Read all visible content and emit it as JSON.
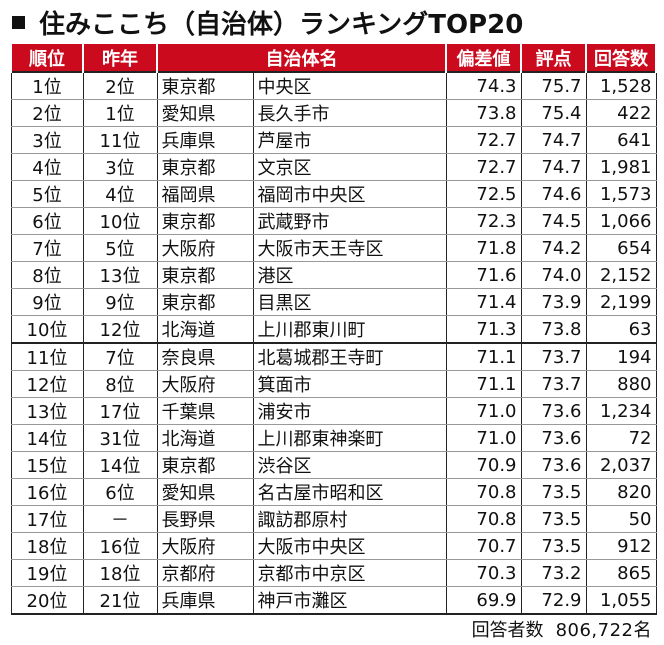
{
  "title": "住みここち（自治体）ランキングTOP20",
  "columns": [
    "順位",
    "昨年",
    "自治体名",
    "偏差値",
    "評点",
    "回答数"
  ],
  "rows": [
    {
      "rank": "1位",
      "prev": "2位",
      "pref": "東京都",
      "city": "中央区",
      "dev": "74.3",
      "score": "75.7",
      "resp": "1,528"
    },
    {
      "rank": "2位",
      "prev": "1位",
      "pref": "愛知県",
      "city": "長久手市",
      "dev": "73.8",
      "score": "75.4",
      "resp": "422"
    },
    {
      "rank": "3位",
      "prev": "11位",
      "pref": "兵庫県",
      "city": "芦屋市",
      "dev": "72.7",
      "score": "74.7",
      "resp": "641"
    },
    {
      "rank": "4位",
      "prev": "3位",
      "pref": "東京都",
      "city": "文京区",
      "dev": "72.7",
      "score": "74.7",
      "resp": "1,981"
    },
    {
      "rank": "5位",
      "prev": "4位",
      "pref": "福岡県",
      "city": "福岡市中央区",
      "dev": "72.5",
      "score": "74.6",
      "resp": "1,573"
    },
    {
      "rank": "6位",
      "prev": "10位",
      "pref": "東京都",
      "city": "武蔵野市",
      "dev": "72.3",
      "score": "74.5",
      "resp": "1,066"
    },
    {
      "rank": "7位",
      "prev": "5位",
      "pref": "大阪府",
      "city": "大阪市天王寺区",
      "dev": "71.8",
      "score": "74.2",
      "resp": "654"
    },
    {
      "rank": "8位",
      "prev": "13位",
      "pref": "東京都",
      "city": "港区",
      "dev": "71.6",
      "score": "74.0",
      "resp": "2,152"
    },
    {
      "rank": "9位",
      "prev": "9位",
      "pref": "東京都",
      "city": "目黒区",
      "dev": "71.4",
      "score": "73.9",
      "resp": "2,199"
    },
    {
      "rank": "10位",
      "prev": "12位",
      "pref": "北海道",
      "city": "上川郡東川町",
      "dev": "71.3",
      "score": "73.8",
      "resp": "63"
    },
    {
      "rank": "11位",
      "prev": "7位",
      "pref": "奈良県",
      "city": "北葛城郡王寺町",
      "dev": "71.1",
      "score": "73.7",
      "resp": "194"
    },
    {
      "rank": "12位",
      "prev": "8位",
      "pref": "大阪府",
      "city": "箕面市",
      "dev": "71.1",
      "score": "73.7",
      "resp": "880"
    },
    {
      "rank": "13位",
      "prev": "17位",
      "pref": "千葉県",
      "city": "浦安市",
      "dev": "71.0",
      "score": "73.6",
      "resp": "1,234"
    },
    {
      "rank": "14位",
      "prev": "31位",
      "pref": "北海道",
      "city": "上川郡東神楽町",
      "dev": "71.0",
      "score": "73.6",
      "resp": "72"
    },
    {
      "rank": "15位",
      "prev": "14位",
      "pref": "東京都",
      "city": "渋谷区",
      "dev": "70.9",
      "score": "73.6",
      "resp": "2,037"
    },
    {
      "rank": "16位",
      "prev": "6位",
      "pref": "愛知県",
      "city": "名古屋市昭和区",
      "dev": "70.8",
      "score": "73.5",
      "resp": "820"
    },
    {
      "rank": "17位",
      "prev": "－",
      "pref": "長野県",
      "city": "諏訪郡原村",
      "dev": "70.8",
      "score": "73.5",
      "resp": "50"
    },
    {
      "rank": "18位",
      "prev": "16位",
      "pref": "大阪府",
      "city": "大阪市中央区",
      "dev": "70.7",
      "score": "73.5",
      "resp": "912"
    },
    {
      "rank": "19位",
      "prev": "18位",
      "pref": "京都府",
      "city": "京都市中京区",
      "dev": "70.3",
      "score": "73.2",
      "resp": "865"
    },
    {
      "rank": "20位",
      "prev": "21位",
      "pref": "兵庫県",
      "city": "神戸市灘区",
      "dev": "69.9",
      "score": "72.9",
      "resp": "1,055"
    }
  ],
  "footer": {
    "label": "回答者数",
    "count": "806,722名"
  },
  "colors": {
    "header_bg": "#cc0a1e",
    "header_text": "#ffffff"
  }
}
